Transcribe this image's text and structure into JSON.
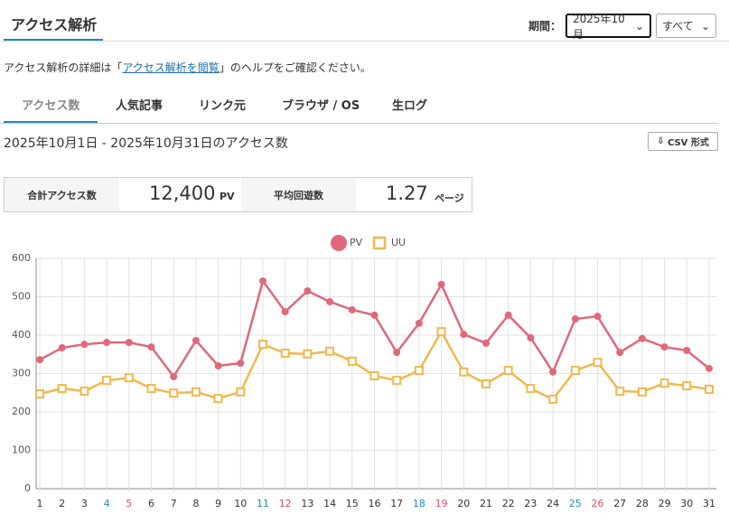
{
  "header": {
    "title": "アクセス解析",
    "period_label": "期間：",
    "month_select": "2025年10月",
    "filter_select": "すべて"
  },
  "help": {
    "before": "アクセス解析の詳細は「",
    "link": "アクセス解析を閲覧",
    "after": "」のヘルプをご確認ください。"
  },
  "tabs": [
    "アクセス数",
    "人気記事",
    "リンク元",
    "ブラウザ / OS",
    "生ログ"
  ],
  "range_title": "2025年10月1日 - 2025年10月31日のアクセス数",
  "csv_button": "CSV 形式",
  "stats": [
    {
      "label": "合計アクセス数",
      "value": "12,400",
      "unit": "PV"
    },
    {
      "label": "平均回遊数",
      "value": "1.27",
      "unit": "ページ"
    }
  ],
  "chart_data": {
    "type": "line",
    "categories": [
      1,
      2,
      3,
      4,
      5,
      6,
      7,
      8,
      9,
      10,
      11,
      12,
      13,
      14,
      15,
      16,
      17,
      18,
      19,
      20,
      21,
      22,
      23,
      24,
      25,
      26,
      27,
      28,
      29,
      30,
      31
    ],
    "xtick_colors": [
      "#333",
      "#333",
      "#333",
      "#1e88c8",
      "#e0505f",
      "#333",
      "#333",
      "#333",
      "#333",
      "#333",
      "#1e88c8",
      "#e0505f",
      "#333",
      "#333",
      "#333",
      "#333",
      "#333",
      "#1e88c8",
      "#e0505f",
      "#333",
      "#333",
      "#333",
      "#333",
      "#333",
      "#1e88c8",
      "#e0505f",
      "#333",
      "#333",
      "#333",
      "#333",
      "#333"
    ],
    "series": [
      {
        "name": "PV",
        "color": "#e0687a",
        "marker": "circle",
        "values": [
          336,
          367,
          376,
          381,
          381,
          369,
          292,
          386,
          320,
          327,
          541,
          461,
          515,
          487,
          466,
          452,
          355,
          431,
          532,
          402,
          379,
          452,
          393,
          304,
          442,
          449,
          355,
          391,
          369,
          360,
          313
        ]
      },
      {
        "name": "UU",
        "color": "#f1b84e",
        "marker": "square",
        "values": [
          247,
          261,
          254,
          282,
          289,
          261,
          249,
          252,
          235,
          252,
          376,
          353,
          351,
          358,
          332,
          294,
          282,
          308,
          409,
          304,
          273,
          308,
          261,
          233,
          308,
          329,
          254,
          252,
          275,
          268,
          259
        ]
      }
    ],
    "ylim": [
      0,
      600
    ],
    "yticks": [
      0,
      100,
      200,
      300,
      400,
      500,
      600
    ],
    "grid": true,
    "legend": "top"
  }
}
